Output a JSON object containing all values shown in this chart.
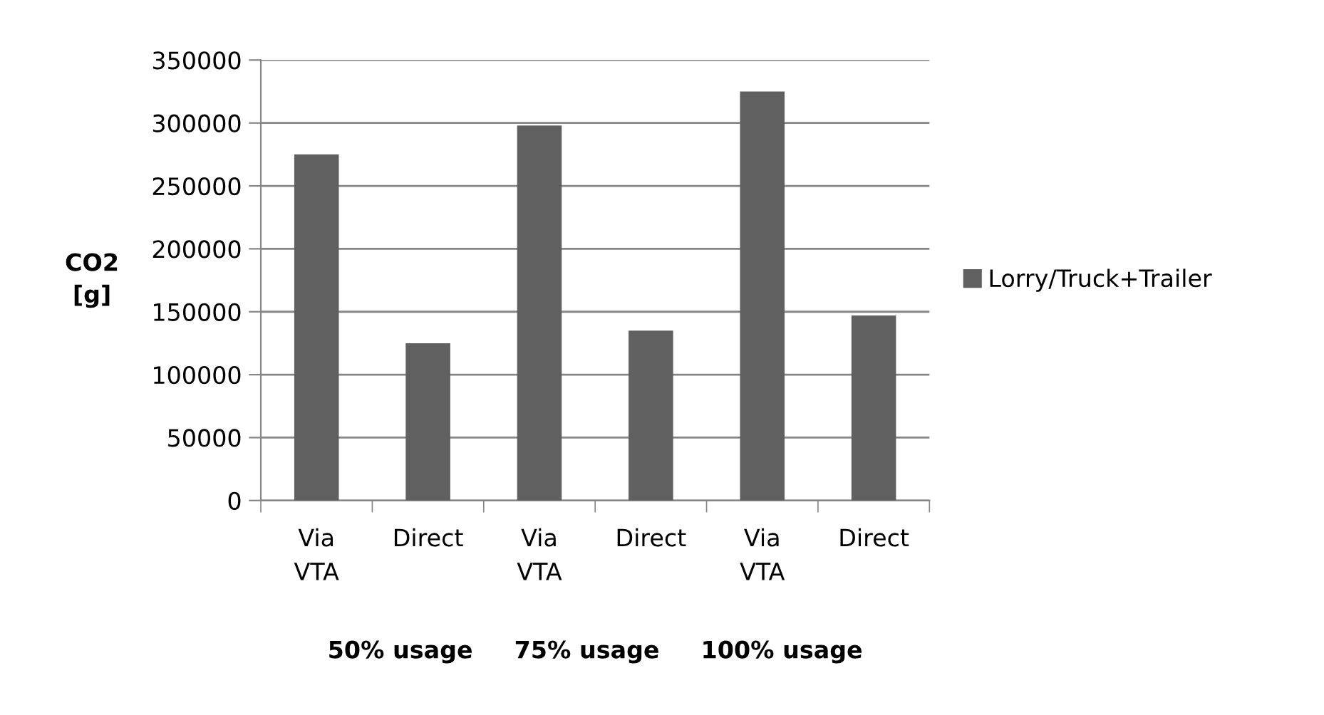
{
  "chart_data": {
    "type": "bar",
    "categories": [
      "Via\nVTA",
      "Direct",
      "Via\nVTA",
      "Direct",
      "Via\nVTA",
      "Direct"
    ],
    "series": [
      {
        "name": "Lorry/Truck+Trailer",
        "color": "#606060",
        "values": [
          275000,
          125000,
          298000,
          135000,
          325000,
          147000
        ]
      }
    ],
    "ylim": [
      0,
      350000
    ],
    "yticks": [
      0,
      50000,
      100000,
      150000,
      200000,
      250000,
      300000,
      350000
    ],
    "ylabel": "CO2\n[g]",
    "xlabel": "50% usage     75% usage     100% usage",
    "grid": "y",
    "legend": "right"
  }
}
